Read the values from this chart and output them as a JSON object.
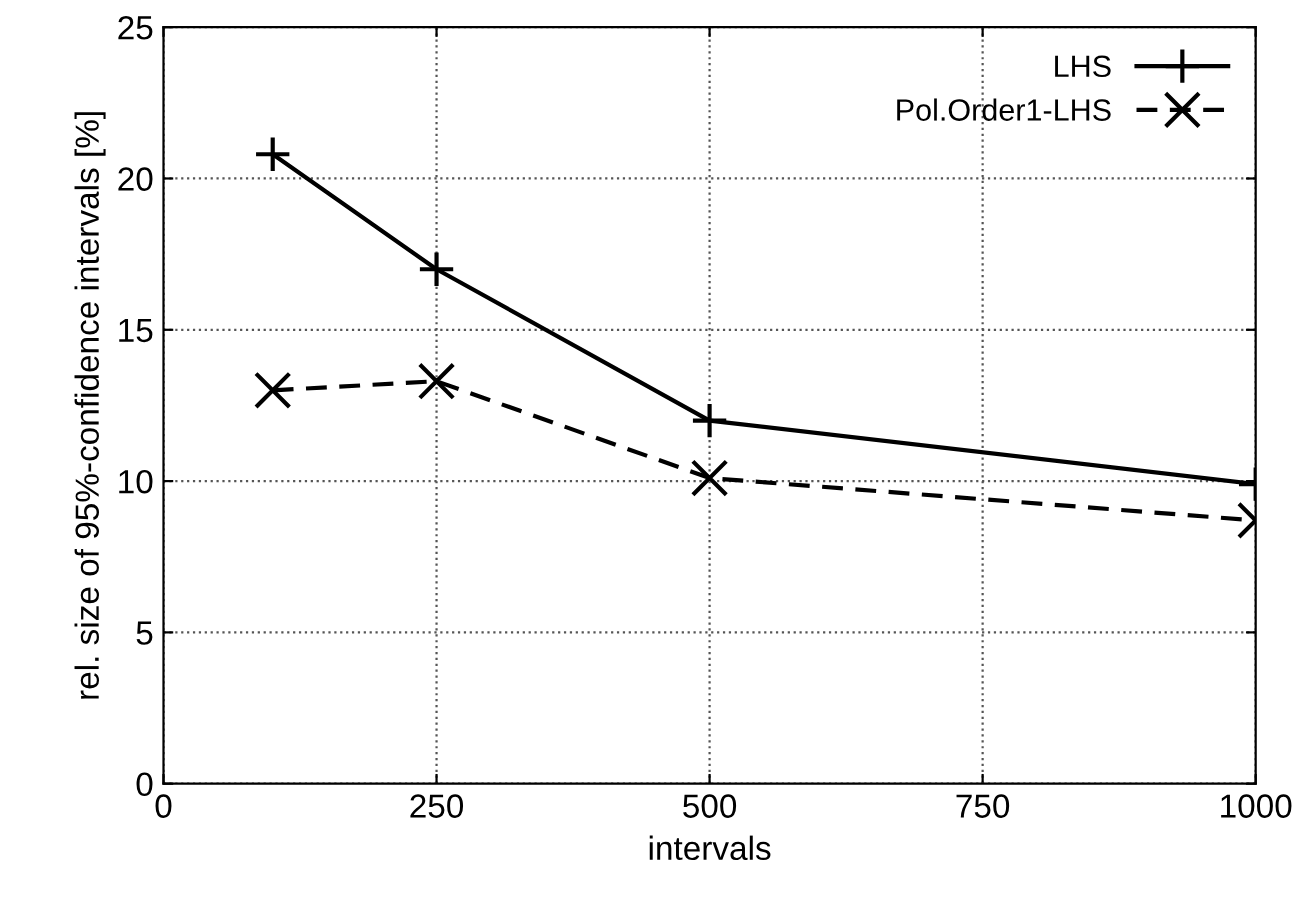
{
  "chart_data": {
    "type": "line",
    "xlabel": "intervals",
    "ylabel": "rel. size of 95%-confidence intervals [%]",
    "x": [
      100,
      250,
      500,
      1000
    ],
    "series": [
      {
        "name": "LHS",
        "color": "#000000",
        "values": [
          20.8,
          17.0,
          12.0,
          9.9
        ],
        "marker": "plus",
        "line_style": "solid"
      },
      {
        "name": "Pol.Order1-LHS",
        "color": "#000000",
        "values": [
          13.0,
          13.3,
          10.1,
          8.7
        ],
        "marker": "cross",
        "line_style": "dashed"
      }
    ],
    "xlim": [
      0,
      1000
    ],
    "xticks": [
      0,
      250,
      500,
      750,
      1000
    ],
    "ylim": [
      0,
      25
    ],
    "yticks": [
      0,
      5,
      10,
      15,
      20,
      25
    ],
    "grid": true,
    "legend": "top right"
  }
}
